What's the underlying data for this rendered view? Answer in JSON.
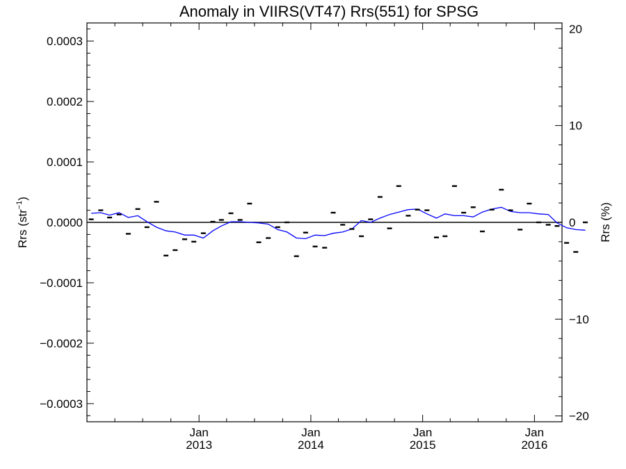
{
  "chart_data": {
    "type": "scatter",
    "title": "Anomaly in VIIRS(VT47) Rrs(551) for SPSG",
    "ylabel_left_base": "Rrs (str",
    "ylabel_left_exp": "−1",
    "ylabel_left_close": ")",
    "ylabel_right": "Rrs (%)",
    "ylim_left": [
      -0.00033,
      0.00033
    ],
    "ylim_right": [
      -20.6,
      20.6
    ],
    "xlim_days": [
      0,
      1551
    ],
    "yticks_left": [
      {
        "value": 0.0003,
        "label": "0.0003"
      },
      {
        "value": 0.0002,
        "label": "0.0002"
      },
      {
        "value": 0.0001,
        "label": "0.0001"
      },
      {
        "value": 0.0,
        "label": "0.0000"
      },
      {
        "value": -0.0001,
        "label": "−0.0001"
      },
      {
        "value": -0.0002,
        "label": "−0.0002"
      },
      {
        "value": -0.0003,
        "label": "−0.0003"
      }
    ],
    "yticks_right": [
      {
        "value": 20,
        "label": "20"
      },
      {
        "value": 10,
        "label": "10"
      },
      {
        "value": 0,
        "label": "0"
      },
      {
        "value": -10,
        "label": "−10"
      },
      {
        "value": -20,
        "label": "−20"
      }
    ],
    "xticks": [
      {
        "day": 366,
        "month": "Jan",
        "year": "2013"
      },
      {
        "day": 731,
        "month": "Jan",
        "year": "2014"
      },
      {
        "day": 1096,
        "month": "Jan",
        "year": "2015"
      },
      {
        "day": 1461,
        "month": "Jan",
        "year": "2016"
      }
    ],
    "series": [
      {
        "kind": "points",
        "color": "#000000",
        "x": [
          "2012-01",
          "2012-02",
          "2012-03",
          "2012-04",
          "2012-05",
          "2012-06",
          "2012-07",
          "2012-08",
          "2012-09",
          "2012-10",
          "2012-11",
          "2012-12",
          "2013-01",
          "2013-02",
          "2013-03",
          "2013-04",
          "2013-05",
          "2013-06",
          "2013-07",
          "2013-08",
          "2013-09",
          "2013-10",
          "2013-11",
          "2013-12",
          "2014-01",
          "2014-02",
          "2014-03",
          "2014-04",
          "2014-05",
          "2014-06",
          "2014-07",
          "2014-08",
          "2014-09",
          "2014-10",
          "2014-11",
          "2014-12",
          "2015-01",
          "2015-02",
          "2015-03",
          "2015-04",
          "2015-05",
          "2015-06",
          "2015-07",
          "2015-08",
          "2015-09",
          "2015-10",
          "2015-11",
          "2015-12",
          "2016-01",
          "2016-02",
          "2016-03",
          "2016-04",
          "2016-05",
          "2016-06"
        ],
        "y": [
          5e-06,
          2e-05,
          8e-06,
          1.3e-05,
          -1.9e-05,
          2.2e-05,
          -8e-06,
          3.4e-05,
          -5.5e-05,
          -4.6e-05,
          -2.8e-05,
          -3.2e-05,
          -1.8e-05,
          1e-06,
          4e-06,
          1.5e-05,
          4e-06,
          3.1e-05,
          -3.3e-05,
          -2.6e-05,
          -8e-06,
          0.0,
          -5.6e-05,
          -1.7e-05,
          -4e-05,
          -4.2e-05,
          1.6e-05,
          -4e-06,
          -1.1e-05,
          -2.3e-05,
          5e-06,
          4.2e-05,
          -1e-05,
          6e-05,
          1.1e-05,
          2.1e-05,
          2e-05,
          -2.5e-05,
          -2.3e-05,
          6e-05,
          1.6e-05,
          2.5e-05,
          -1.5e-05,
          2.1e-05,
          5.4e-05,
          2e-05,
          -1.2e-05,
          3.1e-05,
          0.0,
          -4e-06,
          -6e-06,
          -3.4e-05,
          -4.9e-05,
          0.0
        ]
      },
      {
        "kind": "line",
        "color": "#0000ff",
        "x": [
          "2012-01",
          "2012-02",
          "2012-03",
          "2012-04",
          "2012-05",
          "2012-06",
          "2012-07",
          "2012-08",
          "2012-09",
          "2012-10",
          "2012-11",
          "2012-12",
          "2013-01",
          "2013-02",
          "2013-03",
          "2013-04",
          "2013-05",
          "2013-06",
          "2013-07",
          "2013-08",
          "2013-09",
          "2013-10",
          "2013-11",
          "2013-12",
          "2014-01",
          "2014-02",
          "2014-03",
          "2014-04",
          "2014-05",
          "2014-06",
          "2014-07",
          "2014-08",
          "2014-09",
          "2014-10",
          "2014-11",
          "2014-12",
          "2015-01",
          "2015-02",
          "2015-03",
          "2015-04",
          "2015-05",
          "2015-06",
          "2015-07",
          "2015-08",
          "2015-09",
          "2015-10",
          "2015-11",
          "2015-12",
          "2016-01",
          "2016-02",
          "2016-03",
          "2016-04",
          "2016-05",
          "2016-06"
        ],
        "y": [
          1.5e-05,
          1.6e-05,
          1.2e-05,
          1.6e-05,
          8e-06,
          1.1e-05,
          1e-06,
          -8e-06,
          -1.4e-05,
          -1.6e-05,
          -2.1e-05,
          -2.1e-05,
          -2.6e-05,
          -1.4e-05,
          -6e-06,
          1e-06,
          1e-06,
          0.0,
          -1e-06,
          -3e-06,
          -1.2e-05,
          -1.6e-05,
          -2.6e-05,
          -2.7e-05,
          -2.1e-05,
          -2.2e-05,
          -1.8e-05,
          -1.6e-05,
          -1.1e-05,
          3e-06,
          0.0,
          7e-06,
          1.3e-05,
          1.7e-05,
          2.1e-05,
          2.2e-05,
          1.4e-05,
          7e-06,
          1.4e-05,
          1.1e-05,
          1.1e-05,
          9e-06,
          1.7e-05,
          2.2e-05,
          2.5e-05,
          1.8e-05,
          1.6e-05,
          1.6e-05,
          1.4e-05,
          1.3e-05,
          -1e-06,
          -9e-06,
          -1.2e-05,
          -1.3e-05
        ]
      }
    ]
  }
}
